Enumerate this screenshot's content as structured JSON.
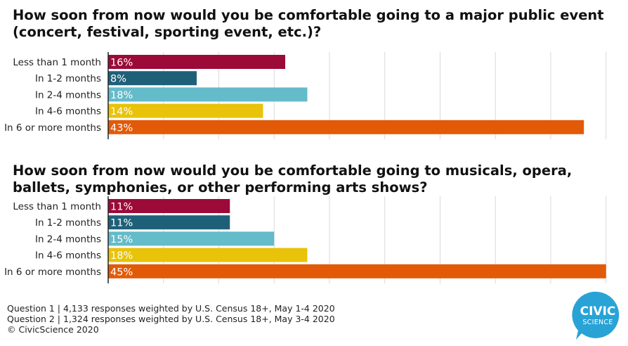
{
  "chart_data": [
    {
      "type": "bar",
      "orientation": "horizontal",
      "title": "How soon from now would you be comfortable going to a major public event (concert, festival, sporting event, etc.)?",
      "categories": [
        "Less than 1 month",
        "In 1-2 months",
        "In 2-4 months",
        "In 4-6 months",
        "In 6 or more months"
      ],
      "values": [
        16,
        8,
        18,
        14,
        43
      ],
      "value_labels": [
        "16%",
        "8%",
        "18%",
        "14%",
        "43%"
      ],
      "colors": [
        "#9b0a38",
        "#1f6079",
        "#64bbc9",
        "#e8c30a",
        "#e25a07"
      ],
      "xlim": [
        0,
        45
      ],
      "grid": true,
      "xlabel": "",
      "ylabel": ""
    },
    {
      "type": "bar",
      "orientation": "horizontal",
      "title": "How soon from now would you be comfortable going to musicals, opera, ballets, symphonies, or other performing arts shows?",
      "categories": [
        "Less than 1 month",
        "In 1-2 months",
        "In 2-4 months",
        "In 4-6 months",
        "In 6 or more months"
      ],
      "values": [
        11,
        11,
        15,
        18,
        45
      ],
      "value_labels": [
        "11%",
        "11%",
        "15%",
        "18%",
        "45%"
      ],
      "colors": [
        "#9b0a38",
        "#1f6079",
        "#64bbc9",
        "#e8c30a",
        "#e25a07"
      ],
      "xlim": [
        0,
        45
      ],
      "grid": true,
      "xlabel": "",
      "ylabel": ""
    }
  ],
  "footer": {
    "line1": "Question 1 | 4,133 responses weighted by U.S. Census 18+, May 1-4 2020",
    "line2": "Question 2 | 1,324 responses weighted by U.S. Census 18+, May 3-4 2020",
    "line3": "© CivicScience 2020"
  },
  "logo": {
    "line1": "CIVIC",
    "line2": "SCIENCE",
    "color": "#29a3d6"
  }
}
